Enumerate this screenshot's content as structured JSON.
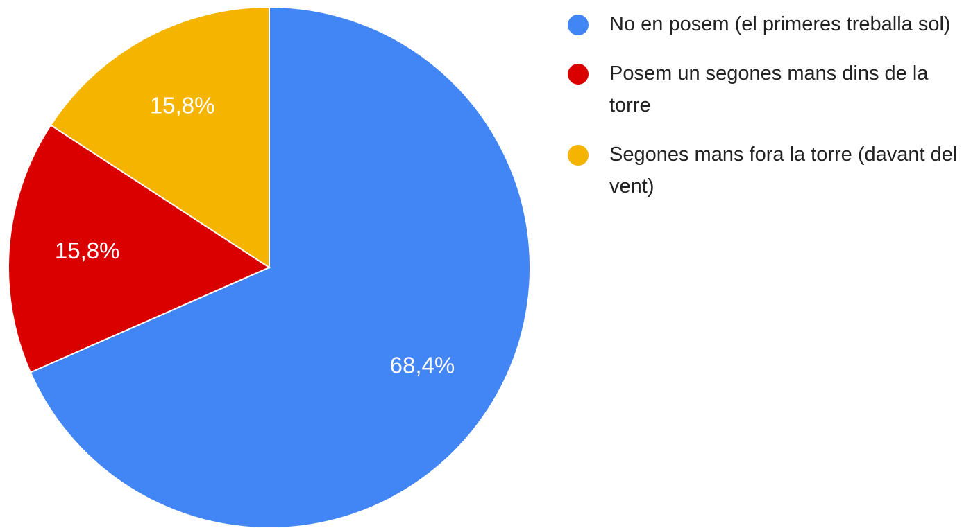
{
  "chart_data": {
    "type": "pie",
    "categories": [
      "No en posem (el primeres treballa sol)",
      "Posem un segones mans dins de la torre",
      "Segones mans fora la torre (davant del vent)"
    ],
    "values": [
      68.4,
      15.8,
      15.8
    ],
    "value_labels": [
      "68,4%",
      "15,8%",
      "15,8%"
    ],
    "colors": [
      "#4285f4",
      "#db0000",
      "#f4b400"
    ],
    "legend": "right"
  }
}
